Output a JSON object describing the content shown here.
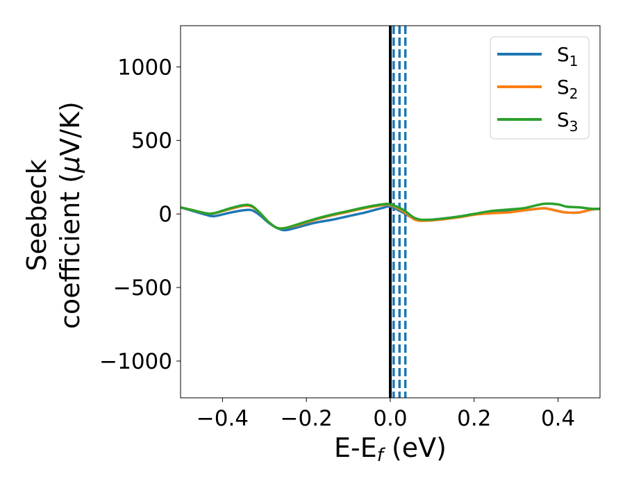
{
  "chart_data": {
    "type": "line",
    "title": "",
    "xlabel": {
      "base": "E-E",
      "sub": "f",
      "suffix": " (eV)"
    },
    "ylabel": {
      "line1": "Seebeck",
      "line2": "coefficient  (",
      "mu": "μ",
      "line2_end": "V/K)"
    },
    "xlim": [
      -0.5,
      0.5
    ],
    "ylim": [
      -1250,
      1280
    ],
    "xticks": [
      -0.4,
      -0.2,
      0.0,
      0.2,
      0.4
    ],
    "xtick_labels": [
      "−0.4",
      "−0.2",
      "0.0",
      "0.2",
      "0.4"
    ],
    "yticks": [
      1000,
      500,
      0,
      -500,
      -1000
    ],
    "ytick_labels": [
      "1000",
      "500",
      "0",
      "−500",
      "−1000"
    ],
    "grid": false,
    "legend_position": "top-right",
    "vertical_lines": [
      {
        "x": 0.0,
        "color": "#000000",
        "style": "solid"
      },
      {
        "x": 0.008,
        "color": "#1f77b4",
        "style": "dashed"
      },
      {
        "x": 0.022,
        "color": "#1f77b4",
        "style": "dashed"
      },
      {
        "x": 0.036,
        "color": "#1f77b4",
        "style": "dashed"
      }
    ],
    "series": [
      {
        "name": "S",
        "sub": "1",
        "color": "#1f77b4",
        "x": [
          -0.5,
          -0.47,
          -0.44,
          -0.42,
          -0.38,
          -0.35,
          -0.33,
          -0.31,
          -0.29,
          -0.27,
          -0.25,
          -0.22,
          -0.18,
          -0.14,
          -0.1,
          -0.06,
          -0.02,
          0.0,
          0.03,
          0.06,
          0.09,
          0.13,
          0.17,
          0.2,
          0.24,
          0.28,
          0.32,
          0.35,
          0.37,
          0.4,
          0.42,
          0.45,
          0.48,
          0.5
        ],
        "y": [
          45,
          20,
          -5,
          -15,
          10,
          25,
          25,
          -10,
          -60,
          -95,
          -110,
          -90,
          -60,
          -40,
          -15,
          10,
          40,
          50,
          10,
          -35,
          -40,
          -30,
          -15,
          0,
          10,
          15,
          25,
          35,
          38,
          20,
          10,
          10,
          30,
          35
        ]
      },
      {
        "name": "S",
        "sub": "2",
        "color": "#ff7f0e",
        "x": [
          -0.5,
          -0.47,
          -0.44,
          -0.42,
          -0.38,
          -0.35,
          -0.33,
          -0.31,
          -0.29,
          -0.27,
          -0.25,
          -0.22,
          -0.18,
          -0.14,
          -0.1,
          -0.06,
          -0.02,
          0.0,
          0.03,
          0.06,
          0.09,
          0.13,
          0.17,
          0.2,
          0.24,
          0.28,
          0.32,
          0.35,
          0.37,
          0.4,
          0.42,
          0.45,
          0.48,
          0.5
        ],
        "y": [
          45,
          25,
          5,
          5,
          35,
          55,
          50,
          5,
          -55,
          -95,
          -95,
          -75,
          -40,
          -10,
          15,
          40,
          60,
          60,
          20,
          -40,
          -45,
          -35,
          -20,
          -5,
          5,
          10,
          25,
          35,
          38,
          20,
          10,
          10,
          30,
          35
        ]
      },
      {
        "name": "S",
        "sub": "3",
        "color": "#2ca02c",
        "x": [
          -0.5,
          -0.47,
          -0.44,
          -0.42,
          -0.38,
          -0.35,
          -0.33,
          -0.31,
          -0.29,
          -0.27,
          -0.25,
          -0.22,
          -0.18,
          -0.14,
          -0.1,
          -0.06,
          -0.02,
          0.0,
          0.03,
          0.06,
          0.09,
          0.13,
          0.17,
          0.2,
          0.24,
          0.28,
          0.32,
          0.35,
          0.37,
          0.4,
          0.42,
          0.45,
          0.48,
          0.5
        ],
        "y": [
          45,
          25,
          5,
          5,
          40,
          60,
          55,
          5,
          -55,
          -95,
          -95,
          -70,
          -35,
          -5,
          20,
          45,
          65,
          65,
          30,
          -30,
          -40,
          -30,
          -15,
          0,
          20,
          30,
          40,
          60,
          70,
          65,
          50,
          45,
          35,
          35
        ]
      }
    ]
  }
}
